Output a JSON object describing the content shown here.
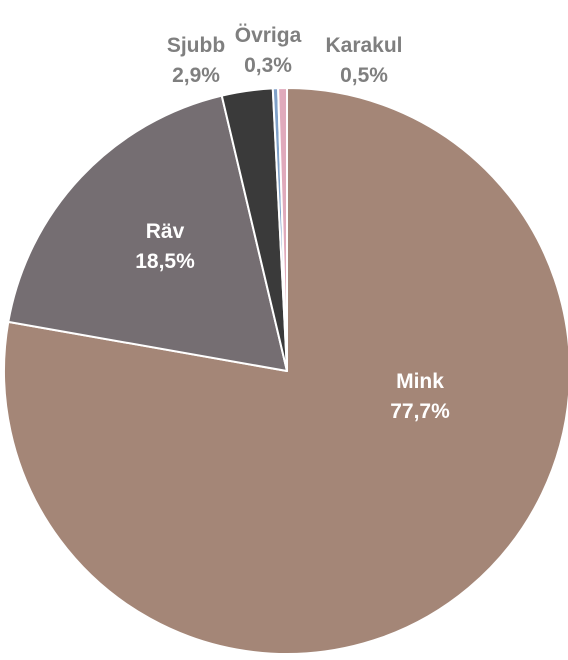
{
  "chart_data": {
    "type": "pie",
    "title": "",
    "slices": [
      {
        "name": "Mink",
        "value": 77.7,
        "label": "77,7%",
        "color": "#a48677",
        "label_color": "#ffffff",
        "label_placement": "inside"
      },
      {
        "name": "Räv",
        "value": 18.5,
        "label": "18,5%",
        "color": "#756e72",
        "label_color": "#ffffff",
        "label_placement": "inside"
      },
      {
        "name": "Sjubb",
        "value": 2.9,
        "label": "2,9%",
        "color": "#3a3a3a",
        "label_color": "#7f7f7f",
        "label_placement": "outside"
      },
      {
        "name": "Övriga",
        "value": 0.3,
        "label": "0,3%",
        "color": "#7fa0c8",
        "label_color": "#7f7f7f",
        "label_placement": "outside"
      },
      {
        "name": "Karakul",
        "value": 0.5,
        "label": "0,5%",
        "color": "#e0aabb",
        "label_color": "#7f7f7f",
        "label_placement": "outside"
      }
    ],
    "start": "12 o'clock",
    "direction": "clockwise",
    "legend": "none"
  }
}
